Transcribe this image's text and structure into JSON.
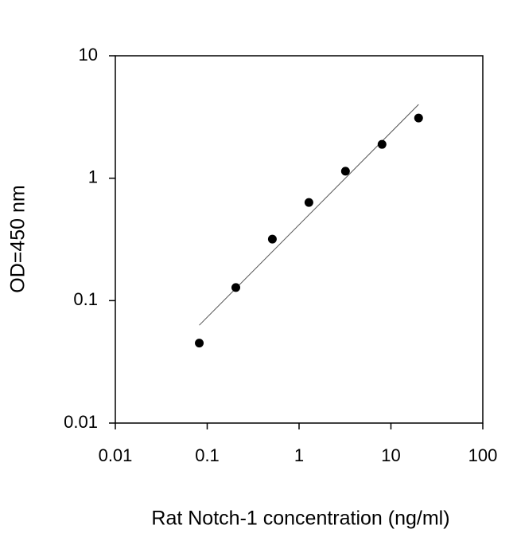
{
  "chart_data": {
    "type": "scatter",
    "x_label": "Rat Notch-1 concentration (ng/ml)",
    "y_label": "OD=450 nm",
    "x": [
      0.082,
      0.205,
      0.512,
      1.28,
      3.2,
      8,
      20
    ],
    "y": [
      0.045,
      0.128,
      0.318,
      0.634,
      1.14,
      1.89,
      3.1
    ],
    "color": "#000000",
    "fit_line": {
      "x": [
        0.082,
        20
      ],
      "y": [
        0.063,
        4.0
      ],
      "color": "#555555"
    },
    "x_log": true,
    "y_log": true,
    "xlim": [
      0.01,
      100
    ],
    "ylim": [
      0.01,
      10
    ],
    "xticks": [
      0.01,
      0.1,
      1,
      10,
      100
    ],
    "yticks": [
      0.01,
      0.1,
      1,
      10
    ]
  }
}
